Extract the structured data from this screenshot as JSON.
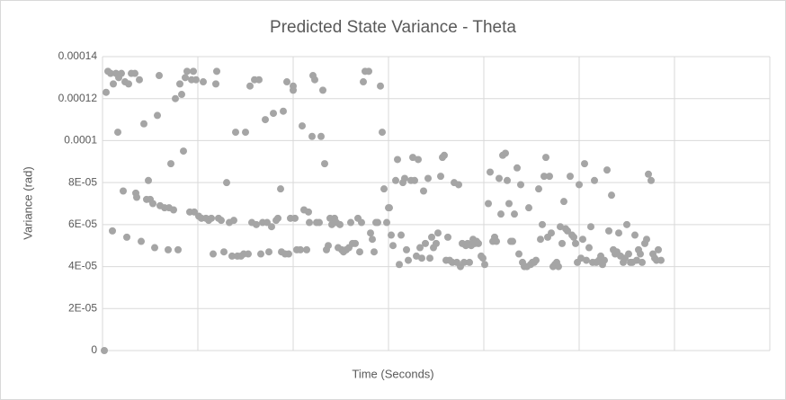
{
  "chart_data": {
    "type": "scatter",
    "title": "Predicted State Variance - Theta",
    "x_label": "Time (Seconds)",
    "y_label": "Variance (rad)",
    "color": "#a5a5a5",
    "grid": true,
    "xtick_labels": false,
    "xlim": [
      0,
      742
    ],
    "xticks": [
      0,
      106,
      212,
      318,
      424,
      530,
      636,
      742
    ],
    "ylim": [
      0,
      0.00014
    ],
    "yticks": [
      0,
      {
        "value": 2e-05,
        "label": "2E-05"
      },
      {
        "value": 4e-05,
        "label": "4E-05"
      },
      {
        "value": 6e-05,
        "label": "6E-05"
      },
      {
        "value": 8e-05,
        "label": "8E-05"
      },
      0.0001,
      0.00012,
      0.00014
    ],
    "x": [
      2,
      4,
      6,
      9,
      11,
      12,
      15,
      17,
      18,
      21,
      23,
      25,
      27,
      29,
      32,
      36,
      37,
      38,
      41,
      43,
      46,
      49,
      51,
      53,
      56,
      58,
      61,
      63,
      64,
      69,
      73,
      74,
      76,
      79,
      81,
      84,
      86,
      88,
      90,
      92,
      94,
      97,
      99,
      101,
      102,
      104,
      107,
      110,
      112,
      115,
      118,
      121,
      123,
      126,
      127,
      129,
      132,
      135,
      138,
      141,
      144,
      146,
      148,
      150,
      154,
      157,
      159,
      162,
      164,
      166,
      169,
      171,
      174,
      176,
      178,
      181,
      183,
      185,
      188,
      190,
      193,
      195,
      198,
      199,
      201,
      203,
      205,
      207,
      209,
      212,
      212,
      214,
      216,
      220,
      222,
      224,
      227,
      229,
      230,
      233,
      234,
      236,
      238,
      241,
      243,
      245,
      247,
      249,
      251,
      253,
      255,
      258,
      260,
      262,
      264,
      266,
      268,
      271,
      274,
      276,
      278,
      281,
      284,
      286,
      288,
      290,
      292,
      296,
      298,
      300,
      302,
      304,
      306,
      309,
      311,
      313,
      316,
      318,
      319,
      321,
      323,
      326,
      328,
      330,
      332,
      334,
      336,
      338,
      340,
      343,
      345,
      347,
      349,
      351,
      353,
      355,
      357,
      359,
      362,
      364,
      366,
      368,
      371,
      373,
      376,
      378,
      380,
      382,
      384,
      386,
      389,
      391,
      394,
      396,
      398,
      400,
      402,
      404,
      406,
      408,
      410,
      412,
      414,
      416,
      418,
      421,
      423,
      425,
      429,
      431,
      434,
      436,
      438,
      441,
      443,
      445,
      448,
      450,
      452,
      454,
      456,
      458,
      461,
      463,
      465,
      467,
      469,
      472,
      474,
      476,
      478,
      480,
      482,
      485,
      487,
      489,
      491,
      493,
      495,
      497,
      499,
      501,
      503,
      505,
      507,
      509,
      511,
      513,
      515,
      517,
      520,
      522,
      524,
      526,
      528,
      530,
      532,
      534,
      536,
      538,
      541,
      543,
      545,
      547,
      549,
      552,
      554,
      556,
      558,
      561,
      563,
      566,
      568,
      570,
      572,
      574,
      576,
      579,
      581,
      583,
      585,
      587,
      589,
      592,
      594,
      596,
      598,
      600,
      603,
      605,
      607,
      610,
      612,
      614,
      616,
      618,
      621
    ],
    "values": [
      0,
      0.000123,
      0.000133,
      0.000132,
      5.7e-05,
      0.000127,
      0.000132,
      0.000104,
      0.00013,
      0.000132,
      7.6e-05,
      0.000128,
      5.4e-05,
      0.000127,
      0.000132,
      0.000132,
      7.5e-05,
      7.3e-05,
      0.000129,
      5.2e-05,
      0.000108,
      7.2e-05,
      8.1e-05,
      7.2e-05,
      7e-05,
      4.9e-05,
      0.000112,
      0.000131,
      6.9e-05,
      6.8e-05,
      4.8e-05,
      6.8e-05,
      8.9e-05,
      6.7e-05,
      0.00012,
      4.8e-05,
      0.000127,
      0.000122,
      9.5e-05,
      0.00013,
      0.000133,
      6.6e-05,
      0.000129,
      0.000133,
      6.6e-05,
      0.000129,
      6.4e-05,
      6.3e-05,
      0.000128,
      6.3e-05,
      6.2e-05,
      6.3e-05,
      4.6e-05,
      0.000127,
      0.000133,
      6.3e-05,
      6.2e-05,
      4.7e-05,
      8e-05,
      6.1e-05,
      4.5e-05,
      6.2e-05,
      0.000104,
      4.5e-05,
      4.5e-05,
      4.6e-05,
      0.000104,
      4.6e-05,
      0.000126,
      6.1e-05,
      0.000129,
      6e-05,
      0.000129,
      4.6e-05,
      6.1e-05,
      0.00011,
      6.1e-05,
      4.7e-05,
      5.9e-05,
      0.000113,
      6.2e-05,
      6.3e-05,
      7.7e-05,
      4.7e-05,
      0.000114,
      4.6e-05,
      0.000128,
      4.6e-05,
      6.3e-05,
      0.000124,
      0.000126,
      6.3e-05,
      4.8e-05,
      4.8e-05,
      0.000107,
      6.7e-05,
      4.8e-05,
      6.6e-05,
      6.1e-05,
      0.000102,
      0.000131,
      0.000129,
      6.1e-05,
      6.1e-05,
      0.000102,
      0.000124,
      8.9e-05,
      4.8e-05,
      5e-05,
      6.3e-05,
      6e-05,
      6.3e-05,
      6.1e-05,
      4.9e-05,
      6e-05,
      4.8e-05,
      4.7e-05,
      4.8e-05,
      4.9e-05,
      6.1e-05,
      5.1e-05,
      5.1e-05,
      6.3e-05,
      4.7e-05,
      6.1e-05,
      0.000128,
      0.000133,
      0.000133,
      5.6e-05,
      5.3e-05,
      4.7e-05,
      6.1e-05,
      6.1e-05,
      0.000126,
      0.000104,
      7.7e-05,
      6.1e-05,
      6.8e-05,
      6.8e-05,
      5.5e-05,
      5e-05,
      8.1e-05,
      9.1e-05,
      4.1e-05,
      5.5e-05,
      8e-05,
      8.2e-05,
      4.8e-05,
      4.3e-05,
      8.1e-05,
      9.2e-05,
      8.1e-05,
      4.5e-05,
      9.1e-05,
      4.9e-05,
      4.4e-05,
      7.6e-05,
      5.1e-05,
      8.2e-05,
      4.4e-05,
      5.4e-05,
      4.9e-05,
      5.1e-05,
      5.6e-05,
      8.3e-05,
      9.2e-05,
      9.3e-05,
      4.3e-05,
      5.4e-05,
      4.3e-05,
      4.2e-05,
      8e-05,
      4.2e-05,
      7.9e-05,
      4e-05,
      5.1e-05,
      4.2e-05,
      5e-05,
      5.1e-05,
      4.2e-05,
      5e-05,
      5.3e-05,
      5.1e-05,
      5.2e-05,
      5.1e-05,
      4.5e-05,
      4.4e-05,
      4.1e-05,
      7e-05,
      8.5e-05,
      5.2e-05,
      5.4e-05,
      5.2e-05,
      8.2e-05,
      6.5e-05,
      9.3e-05,
      9.4e-05,
      8.1e-05,
      7e-05,
      5.2e-05,
      5.2e-05,
      6.5e-05,
      8.7e-05,
      4.6e-05,
      7.9e-05,
      4.2e-05,
      4e-05,
      4e-05,
      6.8e-05,
      4.1e-05,
      4.2e-05,
      4.2e-05,
      4.3e-05,
      7.7e-05,
      5.3e-05,
      6e-05,
      8.3e-05,
      9.2e-05,
      5.4e-05,
      8.3e-05,
      5.6e-05,
      4e-05,
      4.1e-05,
      4.2e-05,
      4e-05,
      5.9e-05,
      5.1e-05,
      7.1e-05,
      5.8e-05,
      5.7e-05,
      8.3e-05,
      5.5e-05,
      5.4e-05,
      5.1e-05,
      4.2e-05,
      7.9e-05,
      4.4e-05,
      5.3e-05,
      8.9e-05,
      4.3e-05,
      4.9e-05,
      5.9e-05,
      4.2e-05,
      8.1e-05,
      4.2e-05,
      4.3e-05,
      4.5e-05,
      4.1e-05,
      4.3e-05,
      8.6e-05,
      5.7e-05,
      7.4e-05,
      4.8e-05,
      4.6e-05,
      4.7e-05,
      5.6e-05,
      4.5e-05,
      4.2e-05,
      4.4e-05,
      6e-05,
      4.6e-05,
      4.2e-05,
      4.2e-05,
      5.5e-05,
      4.3e-05,
      4.8e-05,
      4.6e-05,
      4.2e-05,
      5.1e-05,
      5.3e-05,
      8.4e-05,
      8.1e-05,
      4.6e-05,
      4.4e-05,
      4.3e-05,
      4.8e-05,
      4.3e-05
    ]
  }
}
